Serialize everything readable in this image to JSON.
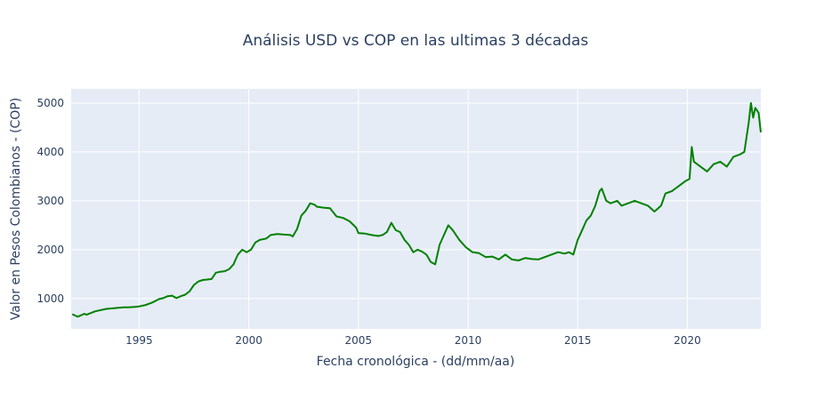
{
  "chart_data": {
    "type": "line",
    "title": "Análisis USD vs COP en las ultimas 3 décadas",
    "xlabel": "Fecha cronológica - (dd/mm/aa)",
    "ylabel": "Valor en Pesos Colombianos - (COP)",
    "x_tick_labels": [
      "1995",
      "2000",
      "2005",
      "2010",
      "2015",
      "2020"
    ],
    "y_tick_labels": [
      "1000",
      "2000",
      "3000",
      "4000",
      "5000"
    ],
    "xlim": [
      1991.9,
      2023.35
    ],
    "ylim": [
      380,
      5290
    ],
    "grid": true,
    "colors": {
      "plot_bg": "#E5ECF6",
      "grid": "#ffffff",
      "line": "#008000",
      "text": "#2a3f5f"
    },
    "series": [
      {
        "x": [
          1991.95,
          1992.2,
          1992.5,
          1992.6,
          1993.0,
          1993.5,
          1994.0,
          1994.3,
          1994.5,
          1994.8,
          1995.0,
          1995.3,
          1995.6,
          1995.9,
          1996.1,
          1996.3,
          1996.5,
          1996.7,
          1996.9,
          1997.1,
          1997.3,
          1997.5,
          1997.7,
          1997.9,
          1998.1,
          1998.3,
          1998.5,
          1998.7,
          1998.9,
          1999.1,
          1999.3,
          1999.5,
          1999.7,
          1999.9,
          2000.1,
          2000.3,
          2000.5,
          2000.8,
          2001.0,
          2001.3,
          2001.6,
          2001.9,
          2002.0,
          2002.2,
          2002.4,
          2002.6,
          2002.8,
          2003.0,
          2003.1,
          2003.4,
          2003.7,
          2004.0,
          2004.3,
          2004.6,
          2004.9,
          2005.0,
          2005.3,
          2005.6,
          2005.9,
          2006.1,
          2006.3,
          2006.5,
          2006.7,
          2006.9,
          2007.1,
          2007.3,
          2007.5,
          2007.7,
          2007.9,
          2008.1,
          2008.3,
          2008.5,
          2008.7,
          2008.9,
          2009.1,
          2009.3,
          2009.6,
          2009.9,
          2010.2,
          2010.5,
          2010.8,
          2011.1,
          2011.4,
          2011.7,
          2012.0,
          2012.3,
          2012.6,
          2012.9,
          2013.2,
          2013.5,
          2013.8,
          2014.1,
          2014.4,
          2014.6,
          2014.8,
          2015.0,
          2015.2,
          2015.4,
          2015.6,
          2015.8,
          2016.0,
          2016.1,
          2016.3,
          2016.5,
          2016.8,
          2017.0,
          2017.3,
          2017.6,
          2017.9,
          2018.2,
          2018.5,
          2018.8,
          2019.0,
          2019.3,
          2019.6,
          2019.9,
          2020.1,
          2020.2,
          2020.3,
          2020.6,
          2020.9,
          2021.2,
          2021.5,
          2021.8,
          2022.1,
          2022.4,
          2022.6,
          2022.8,
          2022.9,
          2023.0,
          2023.1,
          2023.25,
          2023.35
        ],
        "y": [
          680,
          630,
          690,
          670,
          740,
          790,
          810,
          820,
          820,
          830,
          840,
          870,
          920,
          990,
          1010,
          1050,
          1060,
          1010,
          1050,
          1080,
          1150,
          1280,
          1350,
          1380,
          1390,
          1400,
          1530,
          1550,
          1560,
          1600,
          1700,
          1900,
          2000,
          1950,
          2000,
          2150,
          2200,
          2230,
          2300,
          2320,
          2310,
          2300,
          2270,
          2420,
          2700,
          2800,
          2950,
          2920,
          2880,
          2860,
          2850,
          2680,
          2650,
          2580,
          2450,
          2340,
          2330,
          2300,
          2280,
          2300,
          2360,
          2550,
          2400,
          2360,
          2200,
          2100,
          1950,
          2000,
          1960,
          1900,
          1750,
          1700,
          2100,
          2300,
          2500,
          2400,
          2200,
          2050,
          1950,
          1930,
          1850,
          1860,
          1800,
          1900,
          1800,
          1780,
          1830,
          1810,
          1800,
          1850,
          1900,
          1950,
          1920,
          1950,
          1900,
          2200,
          2400,
          2600,
          2700,
          2900,
          3200,
          3250,
          3000,
          2950,
          3000,
          2900,
          2950,
          3000,
          2950,
          2900,
          2780,
          2900,
          3150,
          3200,
          3300,
          3400,
          3450,
          4100,
          3800,
          3700,
          3600,
          3750,
          3800,
          3700,
          3900,
          3950,
          4000,
          4600,
          5000,
          4700,
          4900,
          4800,
          4400
        ]
      }
    ]
  }
}
